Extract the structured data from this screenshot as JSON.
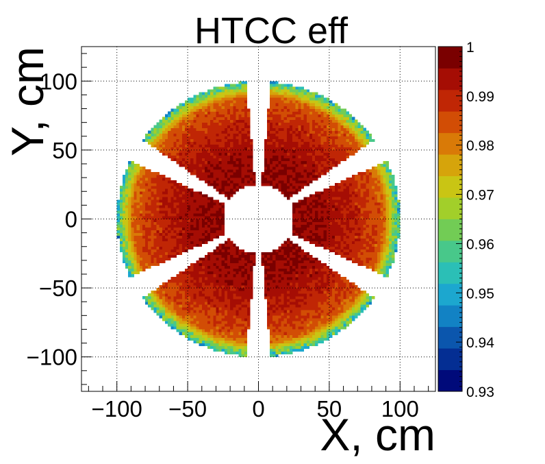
{
  "chart_data": {
    "type": "heatmap",
    "title": "HTCC eff",
    "xlabel": "X, cm",
    "ylabel": "Y, cm",
    "xlim": [
      -125,
      125
    ],
    "ylim": [
      -125,
      125
    ],
    "x_ticks": [
      -100,
      -50,
      0,
      50,
      100
    ],
    "y_ticks": [
      100,
      50,
      0,
      -50,
      -100
    ],
    "x_tick_labels": [
      "−100",
      "−50",
      "0",
      "50",
      "100"
    ],
    "y_tick_labels": [
      "100",
      "50",
      "0",
      "−50",
      "−100"
    ],
    "grid": true,
    "colorbar": {
      "min": 0.93,
      "max": 1.0,
      "ticks": [
        1.0,
        0.99,
        0.98,
        0.97,
        0.96,
        0.95,
        0.94,
        0.93
      ],
      "tick_labels": [
        "1",
        "0.99",
        "0.98",
        "0.97",
        "0.96",
        "0.95",
        "0.94",
        "0.93"
      ],
      "palette": [
        "#000a7a",
        "#042e93",
        "#0b56ad",
        "#1282c4",
        "#1ca7cf",
        "#2bbfb6",
        "#48c88a",
        "#72cc55",
        "#a2cf2a",
        "#c9c514",
        "#d6a40b",
        "#d97a07",
        "#d24d05",
        "#c02605",
        "#a50d04",
        "#7a0000"
      ]
    },
    "sectors": [
      {
        "center_angle_deg": 60,
        "r_min_cm": 25,
        "r_max_cm": 100,
        "half_width_deg": 25
      },
      {
        "center_angle_deg": 0,
        "r_min_cm": 25,
        "r_max_cm": 100,
        "half_width_deg": 25
      },
      {
        "center_angle_deg": -60,
        "r_min_cm": 25,
        "r_max_cm": 100,
        "half_width_deg": 25
      },
      {
        "center_angle_deg": -120,
        "r_min_cm": 25,
        "r_max_cm": 100,
        "half_width_deg": 25
      },
      {
        "center_angle_deg": 180,
        "r_min_cm": 25,
        "r_max_cm": 100,
        "half_width_deg": 25
      },
      {
        "center_angle_deg": 120,
        "r_min_cm": 25,
        "r_max_cm": 100,
        "half_width_deg": 25
      }
    ]
  }
}
